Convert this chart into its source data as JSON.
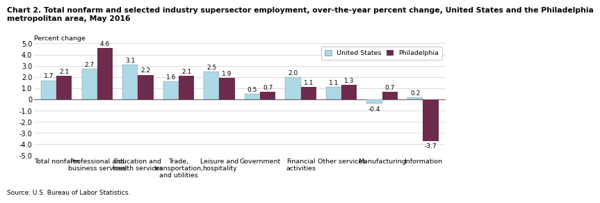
{
  "title_line1": "Chart 2. Total nonfarm and selected industry supersector employment, over-the-year percent change, United States and the Philadelphia",
  "title_line2": "metropolitan area, May 2016",
  "ylabel": "Percent change",
  "source": "Source: U.S. Bureau of Labor Statistics.",
  "categories": [
    "Total nonfarm",
    "Professional and\nbusiness services",
    "Education and\nhealth services",
    "Trade,\ntransportation,\nand utilities",
    "Leisure and\nhospitality",
    "Government",
    "Financial\nactivities",
    "Other services",
    "Manufacturing",
    "Information"
  ],
  "us_values": [
    1.7,
    2.7,
    3.1,
    1.6,
    2.5,
    0.5,
    2.0,
    1.1,
    -0.4,
    0.2
  ],
  "philly_values": [
    2.1,
    4.6,
    2.2,
    2.1,
    1.9,
    0.7,
    1.1,
    1.3,
    0.7,
    -3.7
  ],
  "us_color": "#add8e6",
  "philly_color": "#6d2b4e",
  "ylim": [
    -5.0,
    5.0
  ],
  "yticks": [
    -5.0,
    -4.0,
    -3.0,
    -2.0,
    -1.0,
    0.0,
    1.0,
    2.0,
    3.0,
    4.0,
    5.0
  ],
  "ytick_labels": [
    "-5.0",
    "-4.0",
    "-3.0",
    "-2.0",
    "-1.0",
    "0",
    "1.0",
    "2.0",
    "3.0",
    "4.0",
    "5.0"
  ],
  "legend_labels": [
    "United States",
    "Philadelphia"
  ],
  "bar_width": 0.38,
  "title_fontsize": 7.8,
  "label_fontsize": 6.8,
  "tick_fontsize": 7.0,
  "annotation_fontsize": 6.5
}
